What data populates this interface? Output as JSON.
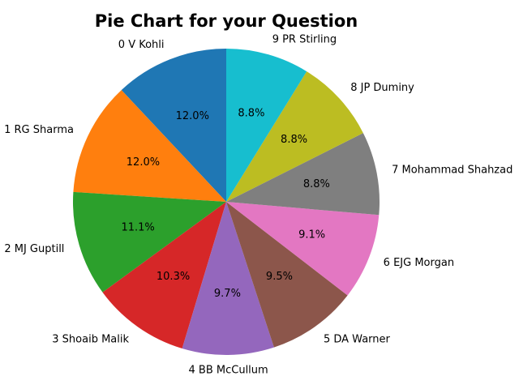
{
  "chart_data": {
    "type": "pie",
    "title": "Pie Chart for your Question",
    "start_angle_deg": 90,
    "direction": "counterclockwise",
    "categories": [
      "0 V Kohli",
      "1 RG Sharma",
      "2 MJ Guptill",
      "3 Shoaib Malik",
      "4 BB McCullum",
      "5 DA Warner",
      "6 EJG Morgan",
      "7 Mohammad Shahzad",
      "8 JP Duminy",
      "9 PR Stirling"
    ],
    "values": [
      12.0,
      12.0,
      11.1,
      10.3,
      9.7,
      9.5,
      9.1,
      8.8,
      8.8,
      8.8
    ],
    "value_labels": [
      "12.0%",
      "12.0%",
      "11.1%",
      "10.3%",
      "9.7%",
      "9.5%",
      "9.1%",
      "8.8%",
      "8.8%",
      "8.8%"
    ],
    "colors": [
      "#1f77b4",
      "#ff7f0e",
      "#2ca02c",
      "#d62728",
      "#9467bd",
      "#8c564b",
      "#e377c2",
      "#7f7f7f",
      "#bcbd22",
      "#17becf"
    ]
  }
}
